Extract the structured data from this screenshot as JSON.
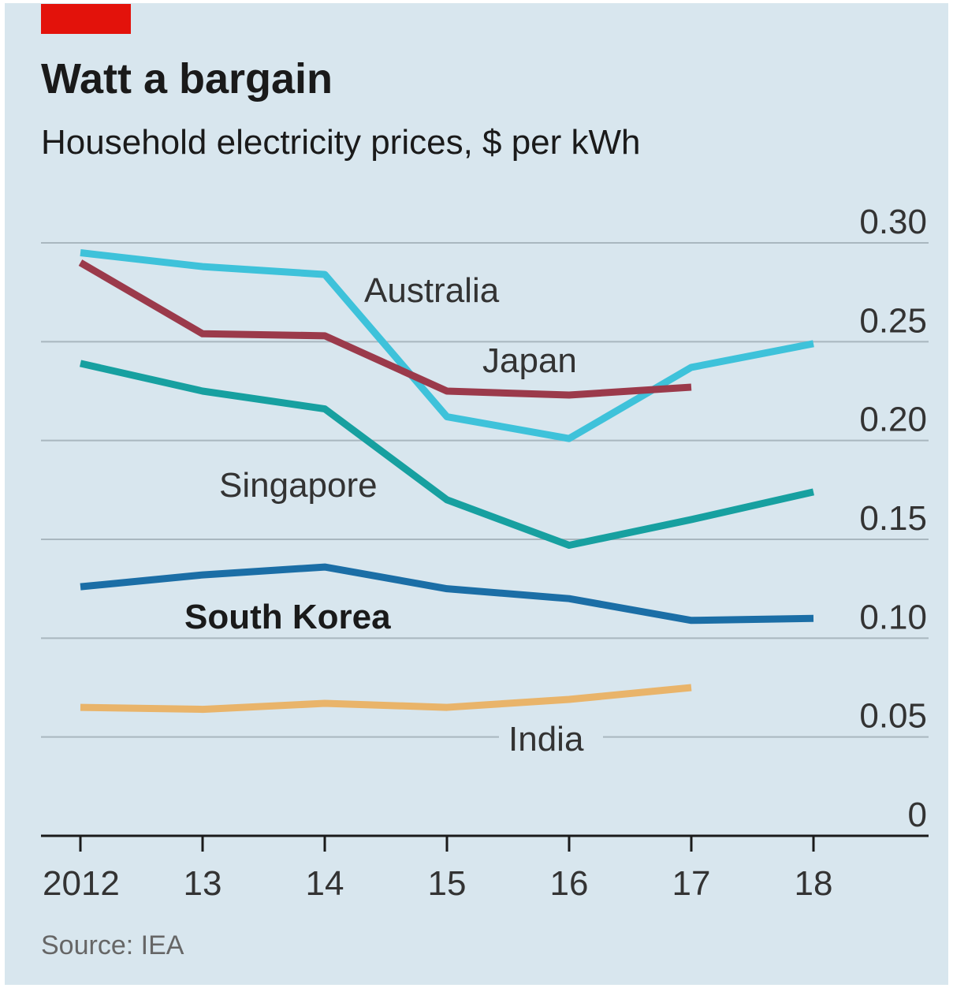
{
  "chart_data": {
    "type": "line",
    "title": "Watt a bargain",
    "subtitle": "Household electricity prices, $ per kWh",
    "source": "Source: IEA",
    "categories": [
      "2012",
      "13",
      "14",
      "15",
      "16",
      "17",
      "18"
    ],
    "series": [
      {
        "name": "Australia",
        "color": "#3ec2da",
        "values": [
          0.295,
          0.288,
          0.284,
          0.212,
          0.201,
          0.237,
          0.249
        ]
      },
      {
        "name": "Japan",
        "color": "#9b3a4b",
        "values": [
          0.29,
          0.254,
          0.253,
          0.225,
          0.223,
          0.227,
          null
        ]
      },
      {
        "name": "Singapore",
        "color": "#17a0a0",
        "values": [
          0.239,
          0.225,
          0.216,
          0.17,
          0.147,
          0.16,
          0.174
        ]
      },
      {
        "name": "South Korea",
        "color": "#1b6ea6",
        "values": [
          0.126,
          0.132,
          0.136,
          0.125,
          0.12,
          0.109,
          0.11
        ]
      },
      {
        "name": "India",
        "color": "#e9b46a",
        "values": [
          0.065,
          0.064,
          0.067,
          0.065,
          0.069,
          0.075,
          null
        ]
      }
    ],
    "ylim": [
      0,
      0.3
    ],
    "yticks": [
      0,
      0.05,
      {
        "value": 0.1,
        "label": "0.10"
      },
      0.15,
      {
        "value": 0.2,
        "label": "0.20"
      },
      0.25,
      {
        "value": 0.3,
        "label": "0.30"
      }
    ],
    "grid": true
  }
}
